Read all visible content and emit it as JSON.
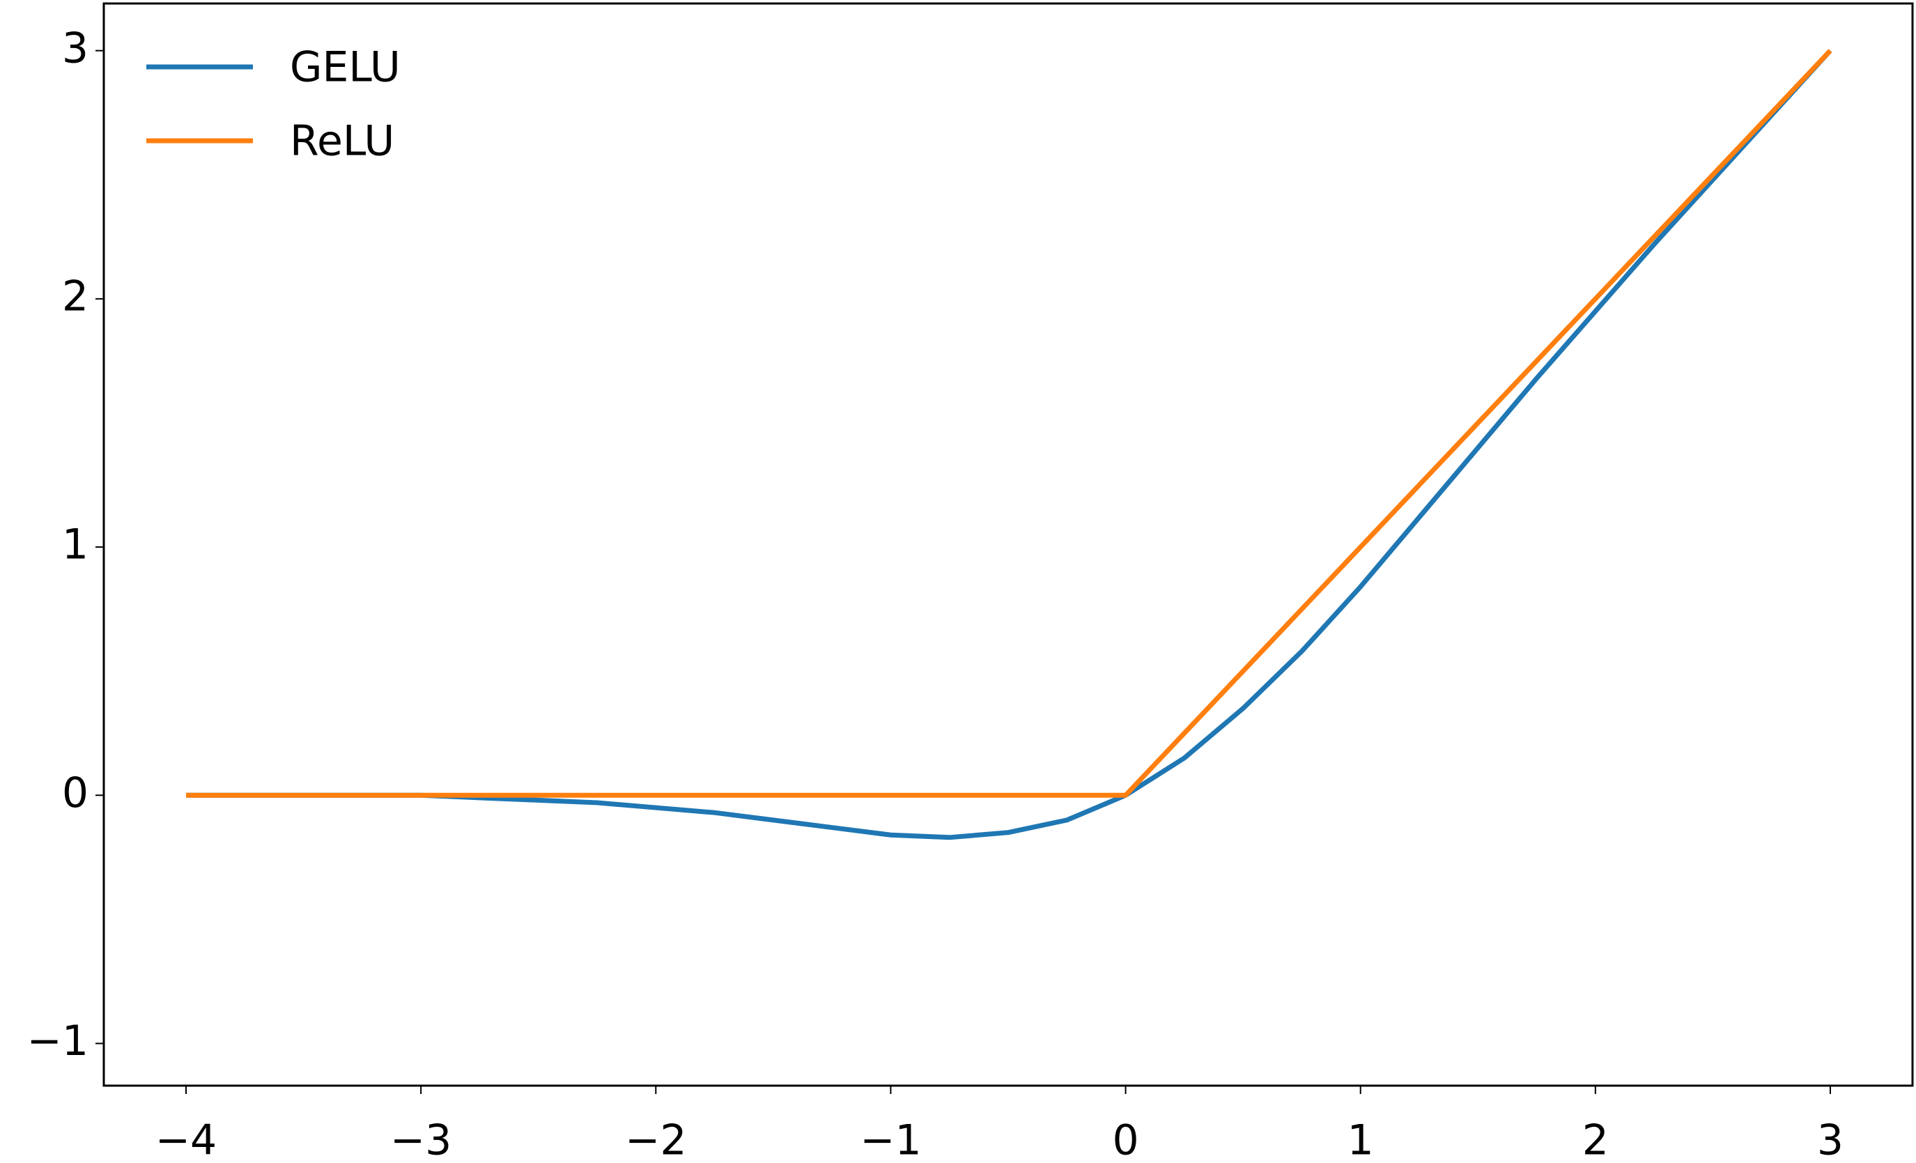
{
  "chart_data": {
    "type": "line",
    "x": [
      -4,
      -3.75,
      -3.5,
      -3.25,
      -3,
      -2.75,
      -2.5,
      -2.25,
      -2,
      -1.75,
      -1.5,
      -1.25,
      -1,
      -0.75,
      -0.5,
      -0.25,
      0,
      0.25,
      0.5,
      0.75,
      1,
      1.25,
      1.5,
      1.75,
      2,
      2.25,
      2.5,
      2.75,
      3
    ],
    "series": [
      {
        "name": "GELU",
        "color": "#1f77b4",
        "values": [
          0,
          0,
          0,
          0,
          0,
          -0.01,
          -0.02,
          -0.03,
          -0.05,
          -0.07,
          -0.1,
          -0.13,
          -0.16,
          -0.17,
          -0.15,
          -0.1,
          0,
          0.15,
          0.35,
          0.58,
          0.84,
          1.12,
          1.4,
          1.68,
          1.95,
          2.22,
          2.48,
          2.74,
          3
        ]
      },
      {
        "name": "ReLU",
        "color": "#ff7f0e",
        "values": [
          0,
          0,
          0,
          0,
          0,
          0,
          0,
          0,
          0,
          0,
          0,
          0,
          0,
          0,
          0,
          0,
          0,
          0.25,
          0.5,
          0.75,
          1,
          1.25,
          1.5,
          1.75,
          2,
          2.25,
          2.5,
          2.75,
          3
        ]
      }
    ],
    "xlim": [
      -4.35,
      3.35
    ],
    "ylim": [
      -1.17,
      3.19
    ],
    "xticks": [
      {
        "value": -4,
        "label": "−4"
      },
      {
        "value": -3,
        "label": "−3"
      },
      {
        "value": -2,
        "label": "−2"
      },
      {
        "value": -1,
        "label": "−1"
      },
      0,
      1,
      2,
      3
    ],
    "yticks": [
      {
        "value": -1,
        "label": "−1"
      },
      0,
      1,
      2,
      3
    ],
    "legend": "upper left"
  }
}
